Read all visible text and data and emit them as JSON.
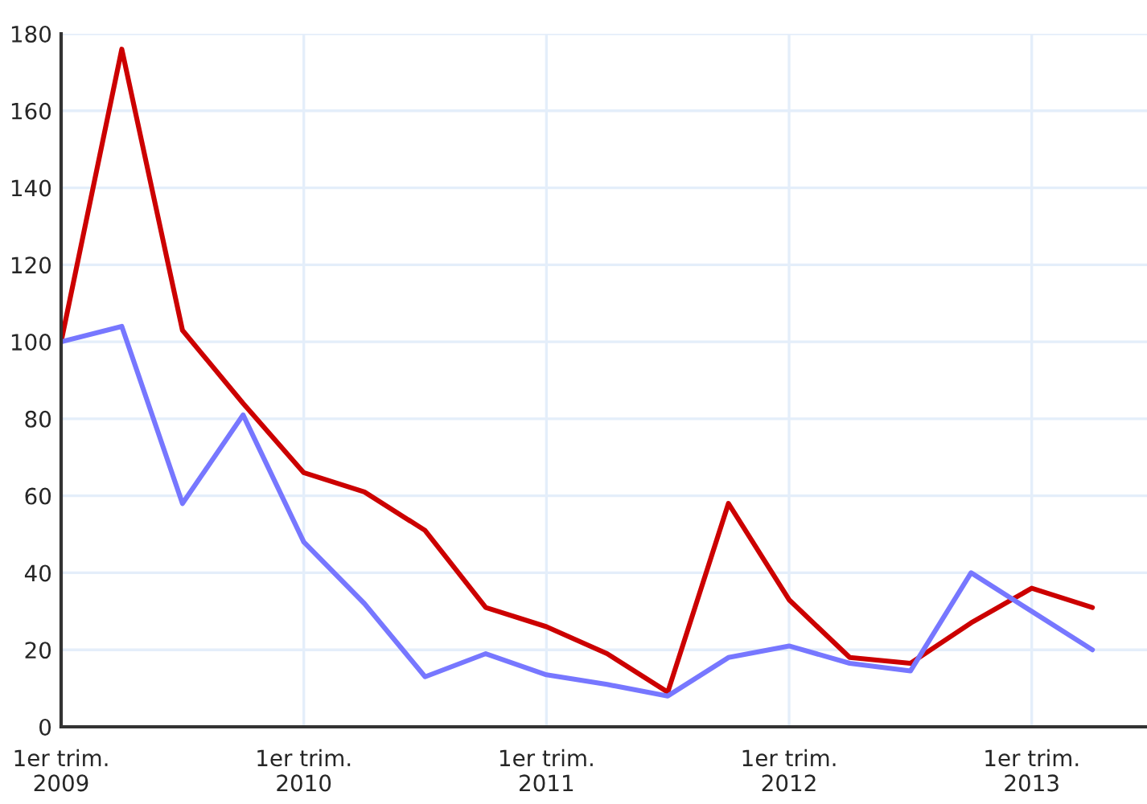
{
  "chart_data": {
    "type": "line",
    "categories": [
      "1er trim.\n2009",
      null,
      null,
      null,
      "1er trim.\n2010",
      null,
      null,
      null,
      "1er trim.\n2011",
      null,
      null,
      null,
      "1er trim.\n2012",
      null,
      null,
      null,
      "1er trim.\n2013",
      null
    ],
    "series": [
      {
        "color": "#cc0000",
        "values": [
          100,
          176,
          103,
          84,
          66,
          61,
          51,
          31,
          26,
          19,
          9,
          58,
          33,
          18,
          16.5,
          27,
          36,
          31
        ]
      },
      {
        "color": "#7777ff",
        "values": [
          100,
          104,
          58,
          81,
          48,
          32,
          13,
          19,
          13.5,
          11,
          8,
          18,
          21,
          16.5,
          14.5,
          40,
          30,
          20
        ]
      }
    ],
    "ylim": [
      0,
      180
    ],
    "yticks": [
      0,
      20,
      40,
      60,
      80,
      100,
      120,
      140,
      160,
      180
    ],
    "grid": true,
    "marker": "none",
    "line_style": "solid"
  }
}
